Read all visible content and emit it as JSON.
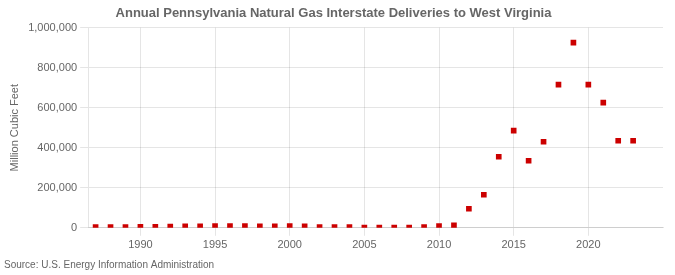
{
  "chart_data": {
    "type": "scatter",
    "title": "Annual Pennsylvania Natural Gas Interstate Deliveries to West Virginia",
    "ylabel": "Million Cubic Feet",
    "source": "Source: U.S. Energy Information Administration",
    "color": "#cc0000",
    "marker": "square",
    "grid": true,
    "xlim": [
      1986.5,
      2025
    ],
    "xticks": [
      1990,
      1995,
      2000,
      2005,
      2010,
      2015,
      2020
    ],
    "ylim": [
      0,
      1000000
    ],
    "yticks": [
      0,
      {
        "value": 200000,
        "label": "200,000"
      },
      {
        "value": 400000,
        "label": "400,000"
      },
      {
        "value": 600000,
        "label": "600,000"
      },
      {
        "value": 800000,
        "label": "800,000"
      },
      {
        "value": 1000000,
        "label": "1,000,000"
      }
    ],
    "x": [
      1987,
      1988,
      1989,
      1990,
      1991,
      1992,
      1993,
      1994,
      1995,
      1996,
      1997,
      1998,
      1999,
      2000,
      2001,
      2002,
      2003,
      2004,
      2005,
      2006,
      2007,
      2008,
      2009,
      2010,
      2011,
      2012,
      2013,
      2014,
      2015,
      2016,
      2017,
      2018,
      2019,
      2020,
      2021,
      2022,
      2023
    ],
    "values": [
      3000,
      3000,
      4000,
      5000,
      5000,
      6000,
      7000,
      7000,
      8000,
      8000,
      8000,
      7000,
      7000,
      8000,
      7000,
      4000,
      3000,
      3000,
      1500,
      1500,
      1500,
      1500,
      4000,
      8000,
      12000,
      95000,
      165000,
      355000,
      485000,
      335000,
      430000,
      715000,
      925000,
      715000,
      625000,
      435000,
      435000
    ]
  }
}
